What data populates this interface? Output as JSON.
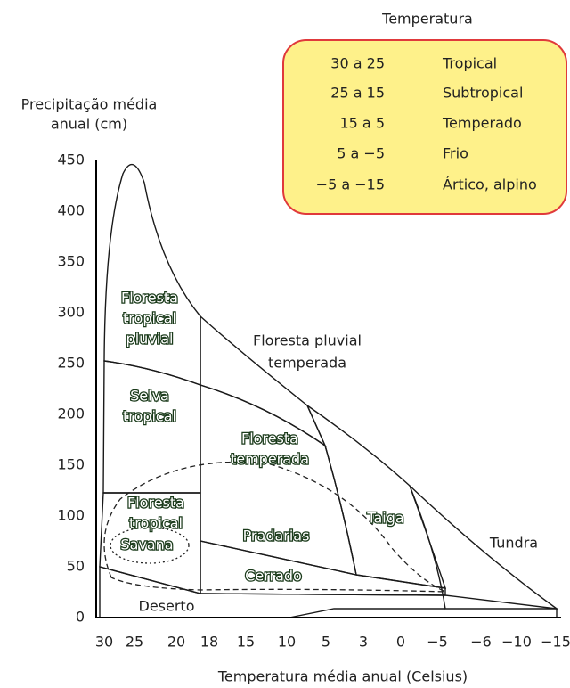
{
  "title": "Temperatura",
  "legend": {
    "rows": [
      [
        "30 a 25",
        "Tropical"
      ],
      [
        "25 a 15",
        "Subtropical"
      ],
      [
        "15 a 5",
        "Temperado"
      ],
      [
        "5 a −5",
        "Frio"
      ],
      [
        "−5 a −15",
        "Ártico, alpino"
      ]
    ]
  },
  "y_axis": {
    "label": [
      "Precipitação média",
      "anual (cm)"
    ],
    "ticks": [
      "0",
      "50",
      "100",
      "150",
      "200",
      "250",
      "300",
      "350",
      "400",
      "450"
    ]
  },
  "x_axis": {
    "label": "Temperatura média anual (Celsius)",
    "ticks": [
      "30",
      "25",
      "20",
      "18",
      "15",
      "10",
      "5",
      "3",
      "0",
      "−5",
      "−6",
      "−10",
      "−15"
    ]
  },
  "regions": [
    {
      "label": [
        "Floresta",
        "tropical",
        "pluvial"
      ]
    },
    {
      "label": [
        "Selva",
        "tropical"
      ]
    },
    {
      "label": [
        "Floresta",
        "tropical"
      ]
    },
    {
      "label": [
        "Savana"
      ]
    },
    {
      "label": [
        "Floresta",
        "temperada"
      ]
    },
    {
      "label": [
        "Pradarias"
      ]
    },
    {
      "label": [
        "Cerrado"
      ]
    },
    {
      "label": [
        "Taiga"
      ]
    },
    {
      "label": [
        "Floresta pluvial",
        "temperada"
      ]
    },
    {
      "label": [
        "Tundra"
      ]
    },
    {
      "label": [
        "Deserto"
      ]
    }
  ]
}
